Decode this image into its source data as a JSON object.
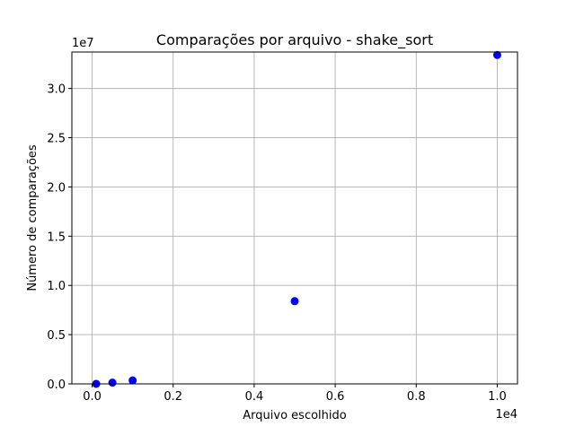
{
  "chart_data": {
    "type": "scatter",
    "title": "Comparações por arquivo - shake_sort",
    "xlabel": "Arquivo escolhido",
    "ylabel": "Número de comparações",
    "x_offset_label": "1e4",
    "y_offset_label": "1e7",
    "xlim": [
      -500,
      10500
    ],
    "ylim": [
      0,
      33700000
    ],
    "x_ticks": [
      0,
      2000,
      4000,
      6000,
      8000,
      10000
    ],
    "x_tick_labels": [
      "0.0",
      "0.2",
      "0.4",
      "0.6",
      "0.8",
      "1.0"
    ],
    "y_ticks": [
      0,
      5000000,
      10000000,
      15000000,
      20000000,
      25000000,
      30000000
    ],
    "y_tick_labels": [
      "0.0",
      "0.5",
      "1.0",
      "1.5",
      "2.0",
      "2.5",
      "3.0"
    ],
    "grid": true,
    "marker_color": "#0000ff",
    "x": [
      100,
      500,
      1000,
      5000,
      10000
    ],
    "y": [
      5000,
      125000,
      350000,
      8400000,
      33400000
    ]
  }
}
